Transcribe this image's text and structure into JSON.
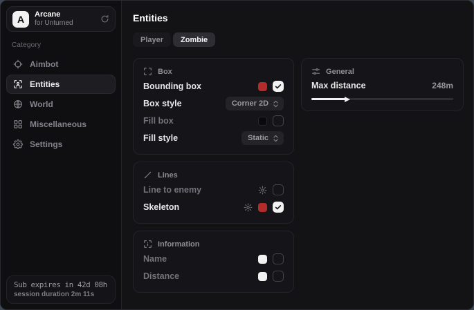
{
  "sidebar": {
    "brand": {
      "avatar_letter": "A",
      "name": "Arcane",
      "subtitle": "for Unturned"
    },
    "category_label": "Category",
    "items": [
      {
        "label": "Aimbot",
        "icon": "crosshair-icon",
        "active": false
      },
      {
        "label": "Entities",
        "icon": "entity-scan-icon",
        "active": true
      },
      {
        "label": "World",
        "icon": "globe-icon",
        "active": false
      },
      {
        "label": "Miscellaneous",
        "icon": "grid-icon",
        "active": false
      },
      {
        "label": "Settings",
        "icon": "gear-icon",
        "active": false
      }
    ],
    "subscription": {
      "expires": "Sub expires in 42d 08h",
      "session": "session duration 2m 11s"
    }
  },
  "main": {
    "title": "Entities",
    "tabs": [
      {
        "label": "Player",
        "active": false
      },
      {
        "label": "Zombie",
        "active": true
      }
    ],
    "cards": {
      "box": {
        "title": "Box",
        "rows": [
          {
            "label": "Bounding box",
            "swatch": "#b32b2b",
            "checked": true
          },
          {
            "label": "Box style",
            "dropdown": "Corner 2D"
          },
          {
            "label": "Fill box",
            "swatch": "#0a0a0c",
            "checked": false
          },
          {
            "label": "Fill style",
            "dropdown": "Static"
          }
        ]
      },
      "lines": {
        "title": "Lines",
        "rows": [
          {
            "label": "Line to enemy",
            "checked": false
          },
          {
            "label": "Skeleton",
            "swatch": "#b32b2b",
            "checked": true
          }
        ]
      },
      "information": {
        "title": "Information",
        "rows": [
          {
            "label": "Name",
            "swatch": "#f2f2f2",
            "checked": false
          },
          {
            "label": "Distance",
            "swatch": "#f2f2f2",
            "checked": false
          }
        ]
      },
      "general": {
        "title": "General",
        "slider": {
          "label": "Max distance",
          "value": "248m",
          "percent": 24
        }
      }
    }
  },
  "colors": {
    "accent_red": "#b32b2b",
    "checkbox_on": "#f2f2f2",
    "card_bg": "#151519",
    "sidebar_bg": "#0f0f12"
  }
}
